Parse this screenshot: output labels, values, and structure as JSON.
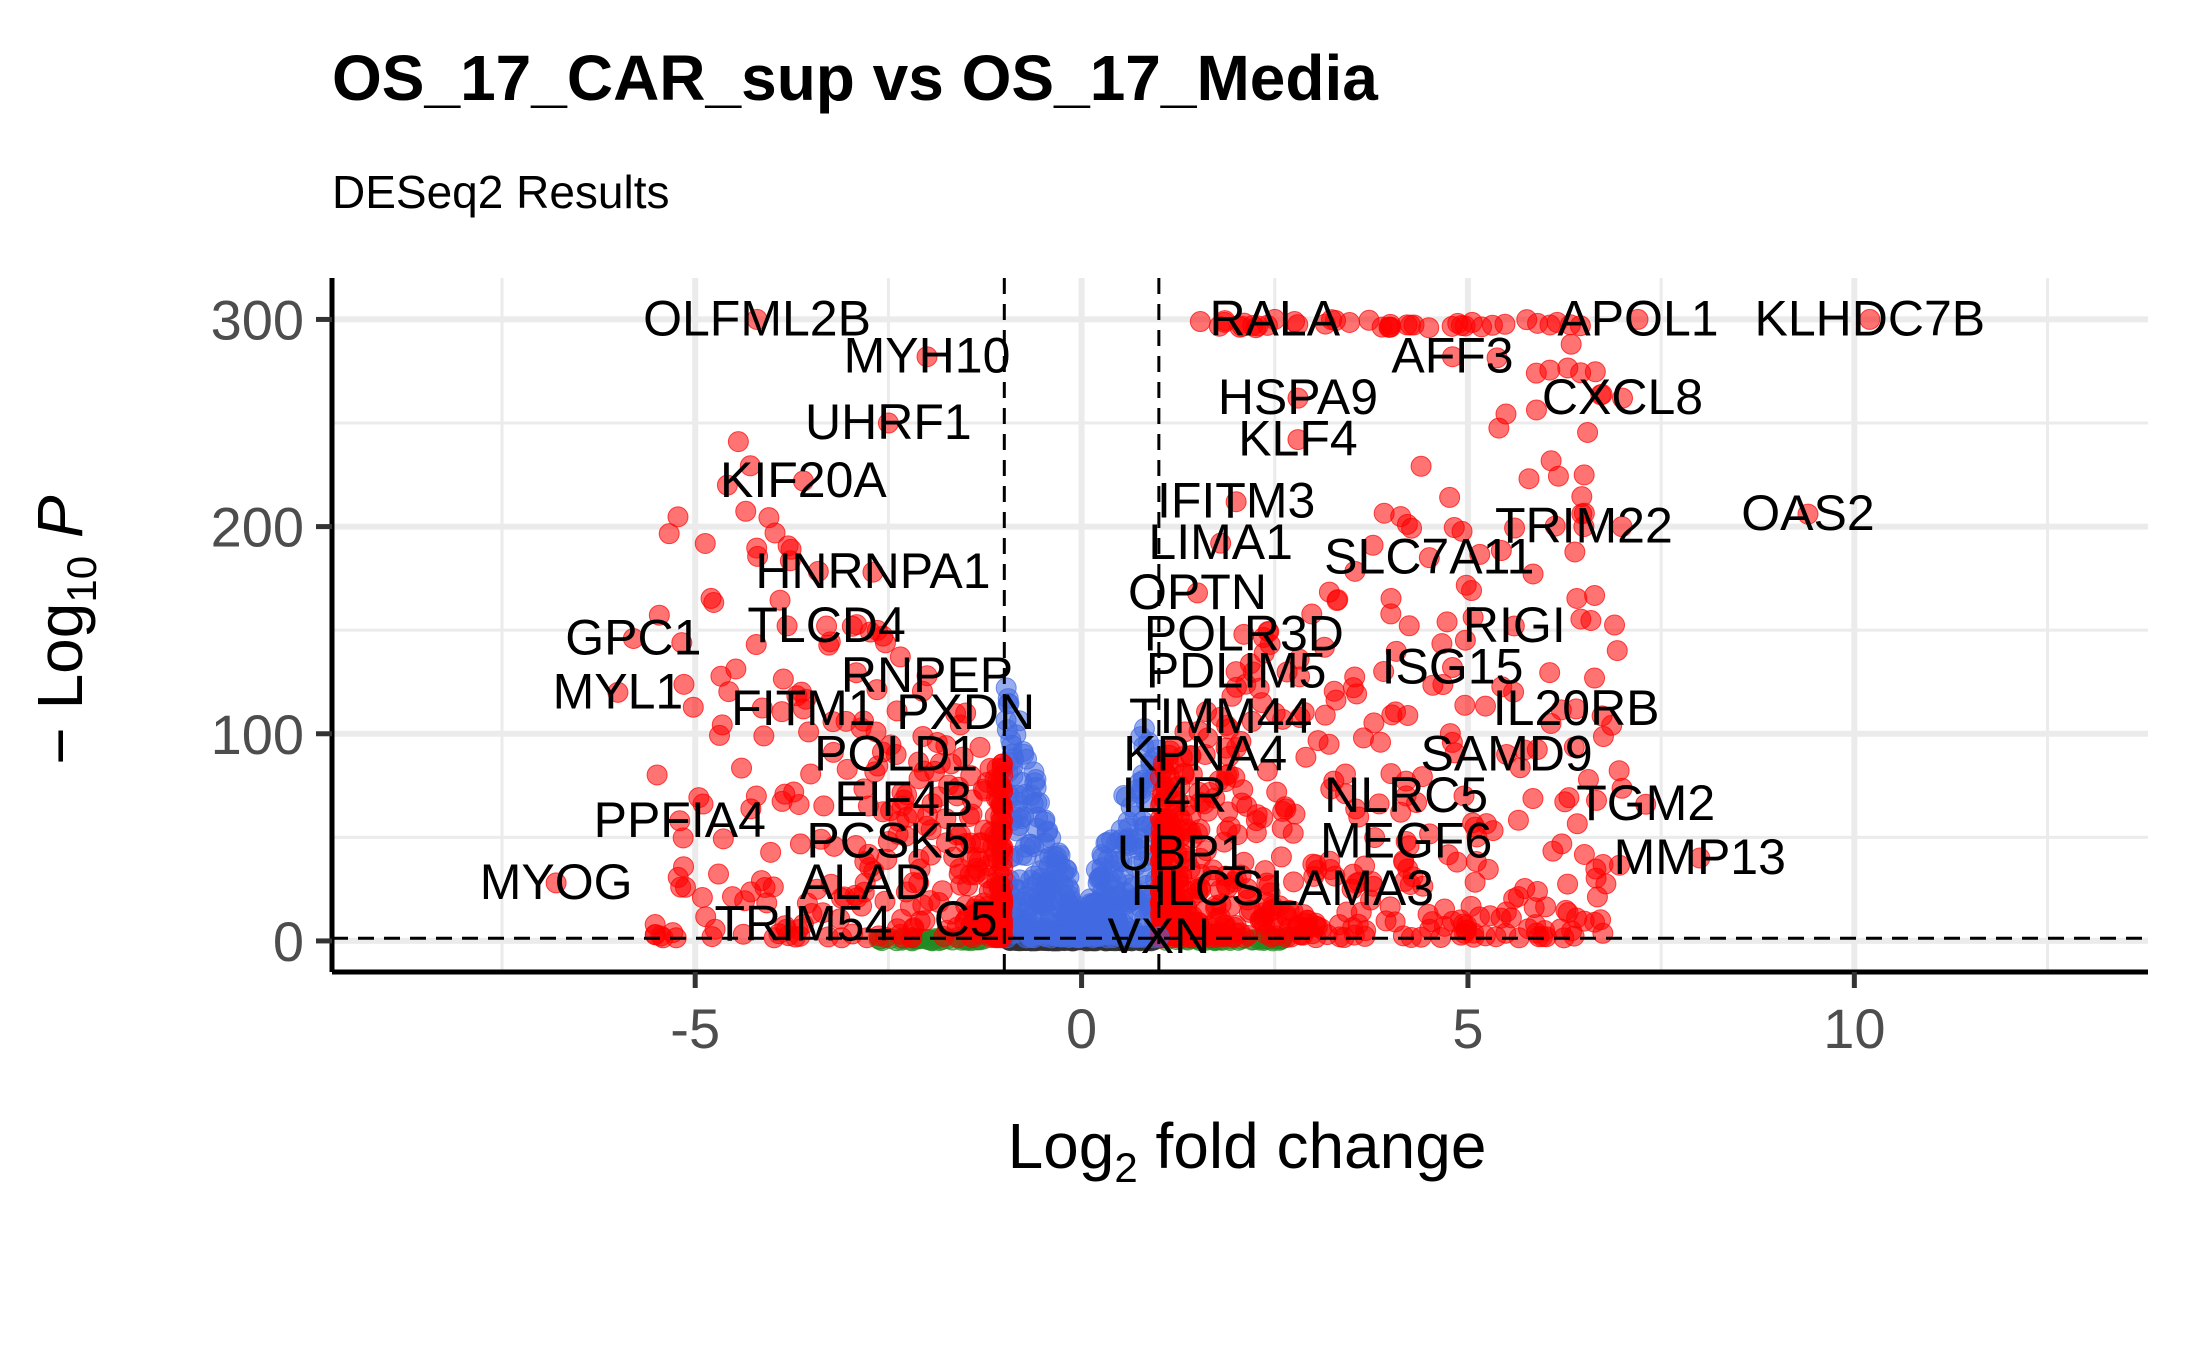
{
  "chart_data": {
    "type": "scatter",
    "title": "OS_17_CAR_sup vs OS_17_Media",
    "subtitle": "DESeq2 Results",
    "xlabel": "Log2 fold change",
    "ylabel": "-Log10 P",
    "xlim": [
      -9.7,
      13.8
    ],
    "ylim": [
      -15,
      320
    ],
    "x_ticks": [
      -5,
      0,
      5,
      10
    ],
    "y_ticks": [
      0,
      100,
      200,
      300
    ],
    "x_tick_labels": [
      "-5",
      "0",
      "5",
      "10"
    ],
    "y_tick_labels": [
      "0",
      "100",
      "200",
      "300"
    ],
    "grid": true,
    "fc_cutoff": 1,
    "p_cutoff_log10": 1.3,
    "colors": {
      "ns": "#333333",
      "log2fc_only": "#228b22",
      "p_only": "#4169e1",
      "p_and_log2fc": "#ff0000"
    },
    "labeled_points": [
      {
        "gene": "OLFML2B",
        "x": -4.2,
        "y": 300
      },
      {
        "gene": "MYH10",
        "x": -2.0,
        "y": 282
      },
      {
        "gene": "UHRF1",
        "x": -2.5,
        "y": 250
      },
      {
        "gene": "KIF20A",
        "x": -3.6,
        "y": 222
      },
      {
        "gene": "HNRNPA1",
        "x": -2.7,
        "y": 178
      },
      {
        "gene": "TLCD4",
        "x": -3.3,
        "y": 152
      },
      {
        "gene": "GPC1",
        "x": -5.8,
        "y": 146
      },
      {
        "gene": "RNPEP",
        "x": -2.0,
        "y": 128
      },
      {
        "gene": "MYL1",
        "x": -6.0,
        "y": 120
      },
      {
        "gene": "FITM1",
        "x": -3.6,
        "y": 112
      },
      {
        "gene": "PXDN",
        "x": -1.5,
        "y": 110
      },
      {
        "gene": "POLD1",
        "x": -2.4,
        "y": 90
      },
      {
        "gene": "EIF4B",
        "x": -2.3,
        "y": 68
      },
      {
        "gene": "PPFIA4",
        "x": -5.2,
        "y": 58
      },
      {
        "gene": "PCSK5",
        "x": -2.5,
        "y": 48
      },
      {
        "gene": "ALAD",
        "x": -2.8,
        "y": 28
      },
      {
        "gene": "MYOG",
        "x": -6.8,
        "y": 28
      },
      {
        "gene": "TRIM54",
        "x": -3.6,
        "y": 8
      },
      {
        "gene": "C5",
        "x": -1.5,
        "y": 10
      },
      {
        "gene": "RALA",
        "x": 2.5,
        "y": 300
      },
      {
        "gene": "APOL1",
        "x": 7.2,
        "y": 300
      },
      {
        "gene": "KLHDC7B",
        "x": 10.2,
        "y": 300
      },
      {
        "gene": "AFF3",
        "x": 4.8,
        "y": 282
      },
      {
        "gene": "HSPA9",
        "x": 2.8,
        "y": 262
      },
      {
        "gene": "CXCL8",
        "x": 7.0,
        "y": 262
      },
      {
        "gene": "KLF4",
        "x": 2.8,
        "y": 242
      },
      {
        "gene": "IFITM3",
        "x": 2.0,
        "y": 212
      },
      {
        "gene": "TRIM22",
        "x": 6.5,
        "y": 200
      },
      {
        "gene": "OAS2",
        "x": 9.4,
        "y": 206
      },
      {
        "gene": "LIMA1",
        "x": 1.8,
        "y": 192
      },
      {
        "gene": "SLC7A11",
        "x": 4.5,
        "y": 185
      },
      {
        "gene": "OPTN",
        "x": 1.5,
        "y": 168
      },
      {
        "gene": "RIGI",
        "x": 5.6,
        "y": 152
      },
      {
        "gene": "POLR3D",
        "x": 2.1,
        "y": 148
      },
      {
        "gene": "ISG15",
        "x": 4.8,
        "y": 132
      },
      {
        "gene": "PDLIM5",
        "x": 2.0,
        "y": 130
      },
      {
        "gene": "IL20RB",
        "x": 6.4,
        "y": 112
      },
      {
        "gene": "TIMM44",
        "x": 1.8,
        "y": 108
      },
      {
        "gene": "SAMD9",
        "x": 5.5,
        "y": 90
      },
      {
        "gene": "KPNA4",
        "x": 1.6,
        "y": 90
      },
      {
        "gene": "NLRC5",
        "x": 4.2,
        "y": 70
      },
      {
        "gene": "TGM2",
        "x": 7.3,
        "y": 66
      },
      {
        "gene": "IL4R",
        "x": 1.2,
        "y": 70
      },
      {
        "gene": "UBP1",
        "x": 1.3,
        "y": 42
      },
      {
        "gene": "MEGF6",
        "x": 4.2,
        "y": 48
      },
      {
        "gene": "MMP13",
        "x": 8.0,
        "y": 40
      },
      {
        "gene": "HLCS",
        "x": 1.5,
        "y": 25
      },
      {
        "gene": "LAMA3",
        "x": 3.5,
        "y": 25
      },
      {
        "gene": "VXN",
        "x": 1.0,
        "y": 2
      }
    ]
  }
}
